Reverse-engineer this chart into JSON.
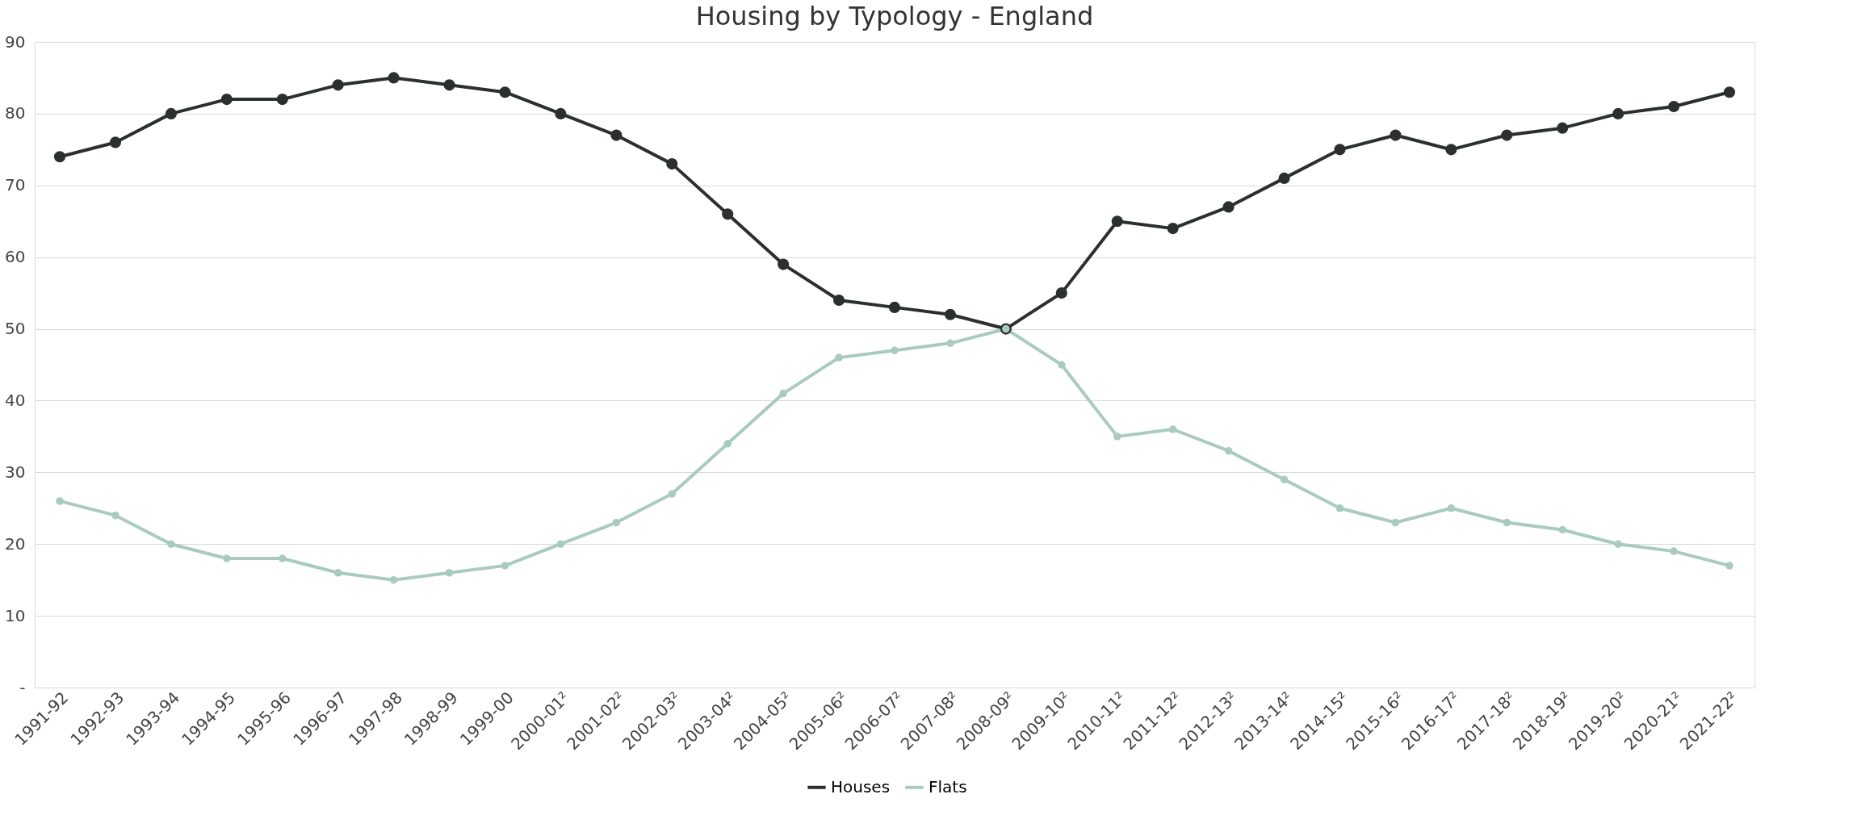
{
  "chart_data": {
    "type": "line",
    "title": "Housing by Typology - England",
    "categories": [
      "1991-92",
      "1992-93",
      "1993-94",
      "1994-95",
      "1995-96",
      "1996-97",
      "1997-98",
      "1998-99",
      "1999-00",
      "2000-01²",
      "2001-02²",
      "2002-03²",
      "2003-04²",
      "2004-05²",
      "2005-06²",
      "2006-07²",
      "2007-08²",
      "2008-09²",
      "2009-10²",
      "2010-11²",
      "2011-12²",
      "2012-13²",
      "2013-14²",
      "2014-15²",
      "2015-16²",
      "2016-17²",
      "2017-18²",
      "2018-19²",
      "2019-20²",
      "2020-21²",
      "2021-22²"
    ],
    "series": [
      {
        "name": "Houses",
        "color": "#2b302d",
        "values": [
          74,
          76,
          80,
          82,
          82,
          84,
          85,
          84,
          83,
          80,
          77,
          73,
          66,
          59,
          54,
          53,
          52,
          50,
          55,
          65,
          64,
          67,
          71,
          75,
          77,
          75,
          77,
          78,
          80,
          81,
          83
        ]
      },
      {
        "name": "Flats",
        "color": "#a9cbbd",
        "values": [
          26,
          24,
          20,
          18,
          18,
          16,
          15,
          16,
          17,
          20,
          23,
          27,
          34,
          41,
          46,
          47,
          48,
          50,
          45,
          35,
          36,
          33,
          29,
          25,
          23,
          25,
          23,
          22,
          20,
          19,
          17
        ]
      }
    ],
    "ylim": [
      0,
      90
    ],
    "yticks": [
      {
        "value": 0,
        "label": "-"
      },
      10,
      20,
      30,
      40,
      50,
      60,
      70,
      80,
      90
    ],
    "grid": "y",
    "legend": "bottom",
    "marker": "circle",
    "line_style": "solid"
  }
}
